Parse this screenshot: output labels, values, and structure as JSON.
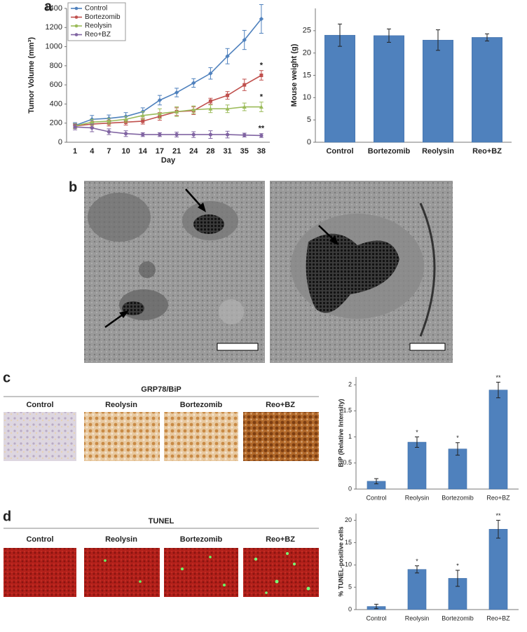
{
  "panels": [
    "a",
    "b",
    "c",
    "d"
  ],
  "grp78": {
    "title": "GRP78/BiP",
    "labels": [
      "Control",
      "Reolysin",
      "Bortezomib",
      "Reo+BZ"
    ]
  },
  "tunel": {
    "title": "TUNEL",
    "labels": [
      "Control",
      "Reolysin",
      "Bortezomib",
      "Reo+BZ"
    ]
  },
  "chart_data": [
    {
      "type": "line",
      "x_label": "Day",
      "y_label": "Tumor Volume (mm³)",
      "categories": [
        "1",
        "4",
        "7",
        "10",
        "14",
        "17",
        "21",
        "24",
        "28",
        "31",
        "35",
        "38"
      ],
      "ylim": [
        0,
        1400
      ],
      "yticks": [
        0,
        200,
        400,
        600,
        800,
        1000,
        1200,
        1400
      ],
      "legend": "upper left",
      "series": [
        {
          "name": "Control",
          "color": "#4f81bd",
          "values": [
            175,
            240,
            250,
            270,
            320,
            440,
            520,
            620,
            720,
            900,
            1070,
            1290
          ],
          "errors": [
            30,
            40,
            35,
            40,
            40,
            50,
            45,
            45,
            60,
            80,
            100,
            150
          ]
        },
        {
          "name": "Bortezomib",
          "color": "#c0504d",
          "values": [
            170,
            190,
            200,
            210,
            220,
            270,
            320,
            330,
            430,
            490,
            600,
            700
          ],
          "errors": [
            25,
            30,
            30,
            30,
            30,
            40,
            40,
            40,
            30,
            40,
            60,
            50
          ],
          "annotation": "*"
        },
        {
          "name": "Reolysin",
          "color": "#9bbb59",
          "values": [
            170,
            210,
            220,
            240,
            280,
            300,
            320,
            340,
            350,
            350,
            370,
            370
          ],
          "errors": [
            25,
            30,
            30,
            30,
            40,
            50,
            50,
            40,
            40,
            40,
            40,
            50
          ],
          "annotation": "*"
        },
        {
          "name": "Reo+BZ",
          "color": "#8064a2",
          "values": [
            160,
            150,
            110,
            90,
            80,
            80,
            80,
            80,
            80,
            80,
            75,
            70
          ],
          "errors": [
            30,
            40,
            30,
            30,
            20,
            20,
            25,
            30,
            40,
            35,
            20,
            20
          ],
          "annotation": "**"
        }
      ]
    },
    {
      "type": "bar",
      "y_label": "Mouse weight (g)",
      "color": "#4f81bd",
      "bold_labels": true,
      "categories": [
        "Control",
        "Bortezomib",
        "Reolysin",
        "Reo+BZ"
      ],
      "values": [
        24,
        23.9,
        22.9,
        23.5
      ],
      "errors": [
        2.5,
        1.5,
        2.3,
        0.8
      ],
      "ylim": [
        0,
        30
      ],
      "yticks": [
        0,
        5,
        10,
        15,
        20,
        25
      ]
    },
    {
      "type": "bar",
      "y_label": "BiP (Relative Intensity)",
      "color": "#4f81bd",
      "bold_labels": false,
      "categories": [
        "Control",
        "Reolysin",
        "Bortezomib",
        "Reo+BZ"
      ],
      "values": [
        0.15,
        0.9,
        0.77,
        1.9
      ],
      "errors": [
        0.05,
        0.1,
        0.12,
        0.15
      ],
      "annotations": [
        null,
        "*",
        "*",
        "**"
      ],
      "ylim": [
        0,
        2.15
      ],
      "yticks": [
        0,
        0.5,
        1,
        1.5,
        2
      ]
    },
    {
      "type": "bar",
      "y_label": "% TUNEL-positive cells",
      "color": "#4f81bd",
      "bold_labels": false,
      "categories": [
        "Control",
        "Reolysin",
        "Bortezomib",
        "Reo+BZ"
      ],
      "values": [
        0.7,
        9,
        7,
        18
      ],
      "errors": [
        0.5,
        0.8,
        1.8,
        2
      ],
      "annotations": [
        null,
        "*",
        "*",
        "**"
      ],
      "ylim": [
        0,
        21.5
      ],
      "yticks": [
        0,
        5,
        10,
        15,
        20
      ]
    }
  ]
}
